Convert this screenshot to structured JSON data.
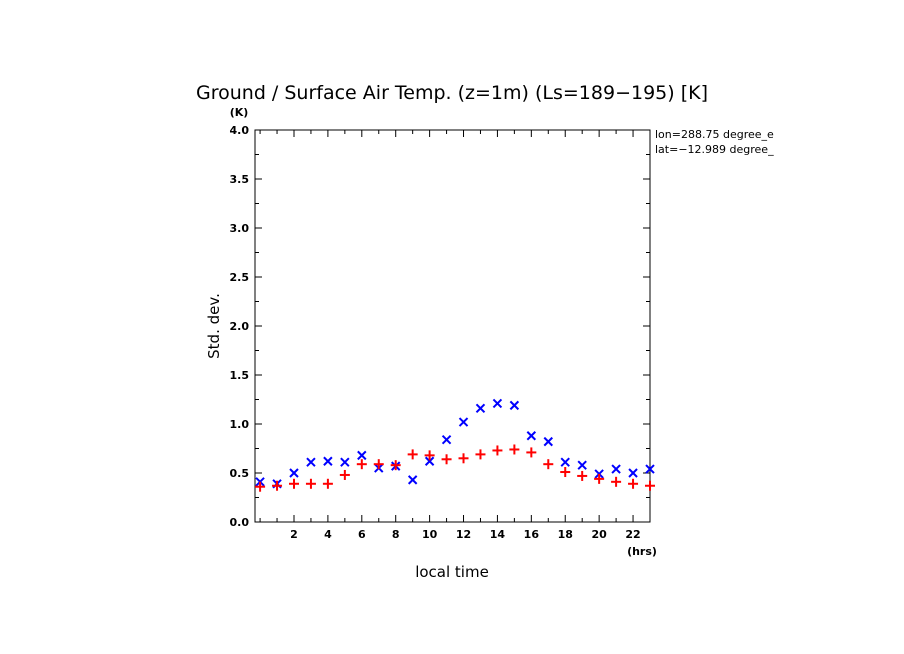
{
  "chart_data": {
    "type": "scatter",
    "title": "Ground / Surface Air Temp. (z=1m) (Ls=189−195) [K]",
    "xlabel": "local time",
    "ylabel": "Std. dev.",
    "x_unit": "(hrs)",
    "y_unit": "(K)",
    "xlim": [
      0,
      23
    ],
    "ylim": [
      0.0,
      4.0
    ],
    "x_ticks": [
      "2",
      "4",
      "6",
      "8",
      "10",
      "12",
      "14",
      "16",
      "18",
      "20",
      "22"
    ],
    "y_ticks": [
      "0.0",
      "0.5",
      "1.0",
      "1.5",
      "2.0",
      "2.5",
      "3.0",
      "3.5",
      "4.0"
    ],
    "annotations": [
      "lon=288.75 degree_e",
      "lat=−12.989 degree_"
    ],
    "series": [
      {
        "marker": "x",
        "color": "#0000ff",
        "x": [
          0,
          1,
          2,
          3,
          4,
          5,
          6,
          7,
          8,
          9,
          10,
          11,
          12,
          13,
          14,
          15,
          16,
          17,
          18,
          19,
          20,
          21,
          22,
          23
        ],
        "y": [
          0.41,
          0.39,
          0.5,
          0.61,
          0.62,
          0.61,
          0.68,
          0.55,
          0.57,
          0.43,
          0.62,
          0.84,
          1.02,
          1.16,
          1.21,
          1.19,
          0.88,
          0.82,
          0.61,
          0.58,
          0.49,
          0.54,
          0.5,
          0.54
        ]
      },
      {
        "marker": "+",
        "color": "#ff0000",
        "x": [
          0,
          1,
          2,
          3,
          4,
          5,
          6,
          7,
          8,
          9,
          10,
          11,
          12,
          13,
          14,
          15,
          16,
          17,
          18,
          19,
          20,
          21,
          22,
          23
        ],
        "y": [
          0.36,
          0.37,
          0.39,
          0.39,
          0.39,
          0.48,
          0.59,
          0.59,
          0.58,
          0.69,
          0.68,
          0.64,
          0.65,
          0.69,
          0.73,
          0.74,
          0.71,
          0.59,
          0.51,
          0.47,
          0.44,
          0.41,
          0.39,
          0.37
        ]
      }
    ]
  }
}
